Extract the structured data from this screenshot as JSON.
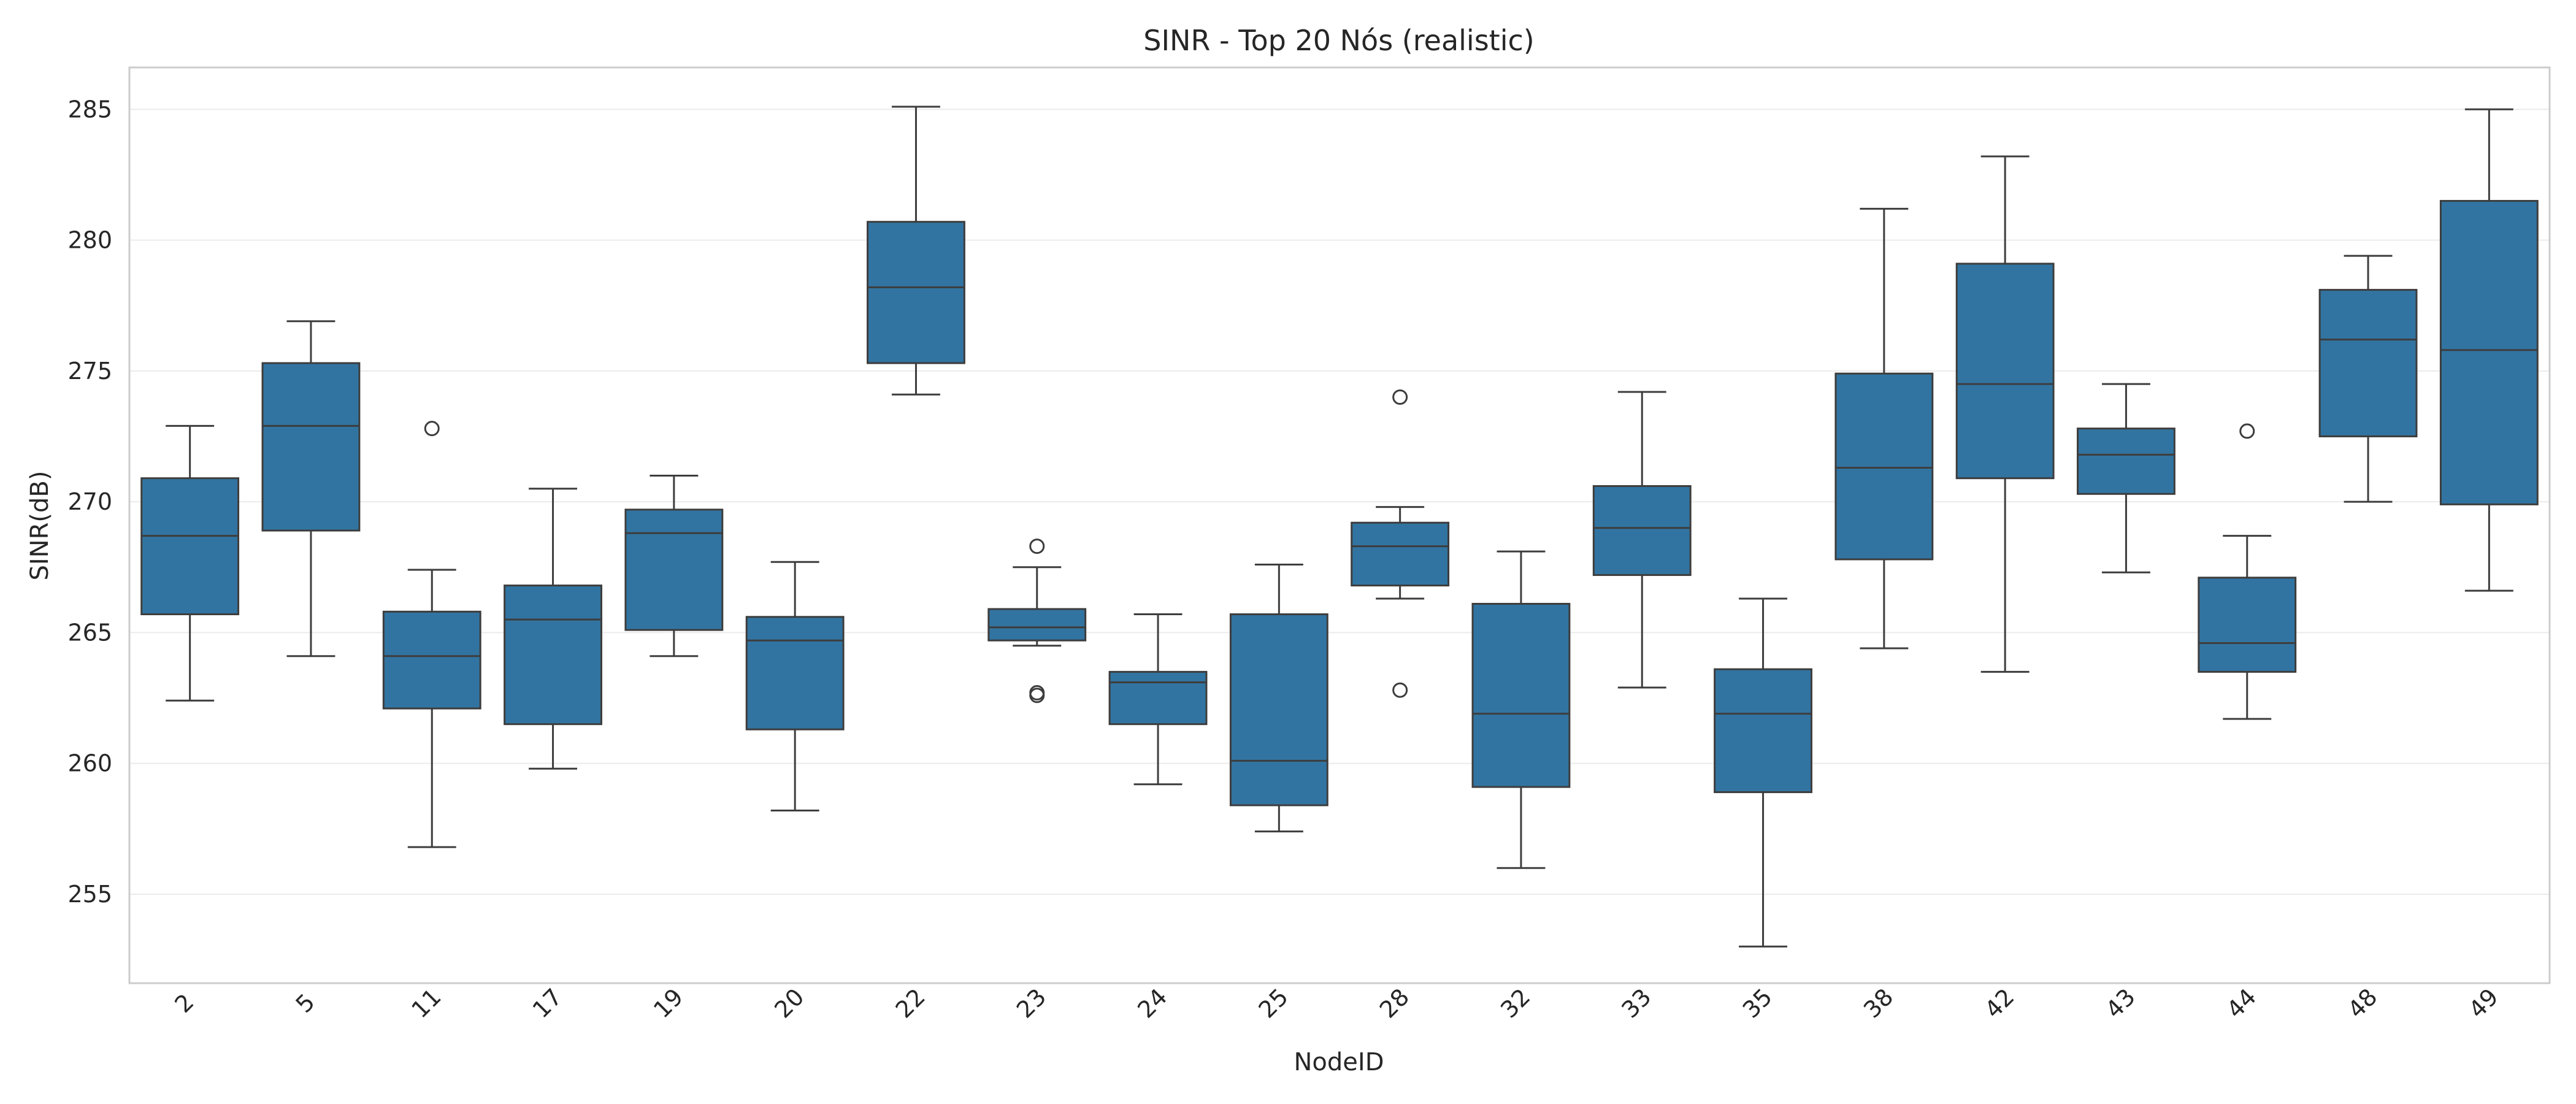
{
  "chart_data": {
    "type": "box",
    "title": "SINR - Top 20 Nós (realistic)",
    "xlabel": "NodeID",
    "ylabel": "SINR(dB)",
    "ylim": [
      251.6,
      286.6
    ],
    "yticks": [
      255,
      260,
      265,
      270,
      275,
      280,
      285
    ],
    "grid": "horizontal",
    "box_color": "#3274a1",
    "line_color": "#3d3d3d",
    "categories": [
      "2",
      "5",
      "11",
      "17",
      "19",
      "20",
      "22",
      "23",
      "24",
      "25",
      "28",
      "32",
      "33",
      "35",
      "38",
      "42",
      "43",
      "44",
      "48",
      "49"
    ],
    "boxes": [
      {
        "q1": 265.7,
        "median": 268.7,
        "q3": 270.9,
        "whisker_low": 262.4,
        "whisker_high": 272.9,
        "outliers": []
      },
      {
        "q1": 268.9,
        "median": 272.9,
        "q3": 275.3,
        "whisker_low": 264.1,
        "whisker_high": 276.9,
        "outliers": []
      },
      {
        "q1": 262.1,
        "median": 264.1,
        "q3": 265.8,
        "whisker_low": 256.8,
        "whisker_high": 267.4,
        "outliers": [
          272.8
        ]
      },
      {
        "q1": 261.5,
        "median": 265.5,
        "q3": 266.8,
        "whisker_low": 259.8,
        "whisker_high": 270.5,
        "outliers": []
      },
      {
        "q1": 265.1,
        "median": 268.8,
        "q3": 269.7,
        "whisker_low": 264.1,
        "whisker_high": 271.0,
        "outliers": []
      },
      {
        "q1": 261.3,
        "median": 264.7,
        "q3": 265.6,
        "whisker_low": 258.2,
        "whisker_high": 267.7,
        "outliers": []
      },
      {
        "q1": 275.3,
        "median": 278.2,
        "q3": 280.7,
        "whisker_low": 274.1,
        "whisker_high": 285.1,
        "outliers": []
      },
      {
        "q1": 264.7,
        "median": 265.2,
        "q3": 265.9,
        "whisker_low": 264.5,
        "whisker_high": 267.5,
        "outliers": [
          268.3,
          262.7,
          262.6
        ]
      },
      {
        "q1": 261.5,
        "median": 263.1,
        "q3": 263.5,
        "whisker_low": 259.2,
        "whisker_high": 265.7,
        "outliers": []
      },
      {
        "q1": 258.4,
        "median": 260.1,
        "q3": 265.7,
        "whisker_low": 257.4,
        "whisker_high": 267.6,
        "outliers": []
      },
      {
        "q1": 266.8,
        "median": 268.3,
        "q3": 269.2,
        "whisker_low": 266.3,
        "whisker_high": 269.8,
        "outliers": [
          274.0,
          262.8
        ]
      },
      {
        "q1": 259.1,
        "median": 261.9,
        "q3": 266.1,
        "whisker_low": 256.0,
        "whisker_high": 268.1,
        "outliers": []
      },
      {
        "q1": 267.2,
        "median": 269.0,
        "q3": 270.6,
        "whisker_low": 262.9,
        "whisker_high": 274.2,
        "outliers": []
      },
      {
        "q1": 258.9,
        "median": 261.9,
        "q3": 263.6,
        "whisker_low": 253.0,
        "whisker_high": 266.3,
        "outliers": []
      },
      {
        "q1": 267.8,
        "median": 271.3,
        "q3": 274.9,
        "whisker_low": 264.4,
        "whisker_high": 281.2,
        "outliers": []
      },
      {
        "q1": 270.9,
        "median": 274.5,
        "q3": 279.1,
        "whisker_low": 263.5,
        "whisker_high": 283.2,
        "outliers": []
      },
      {
        "q1": 270.3,
        "median": 271.8,
        "q3": 272.8,
        "whisker_low": 267.3,
        "whisker_high": 274.5,
        "outliers": []
      },
      {
        "q1": 263.5,
        "median": 264.6,
        "q3": 267.1,
        "whisker_low": 261.7,
        "whisker_high": 268.7,
        "outliers": [
          272.7
        ]
      },
      {
        "q1": 272.5,
        "median": 276.2,
        "q3": 278.1,
        "whisker_low": 270.0,
        "whisker_high": 279.4,
        "outliers": []
      },
      {
        "q1": 269.9,
        "median": 275.8,
        "q3": 281.5,
        "whisker_low": 266.6,
        "whisker_high": 285.0,
        "outliers": []
      }
    ]
  }
}
